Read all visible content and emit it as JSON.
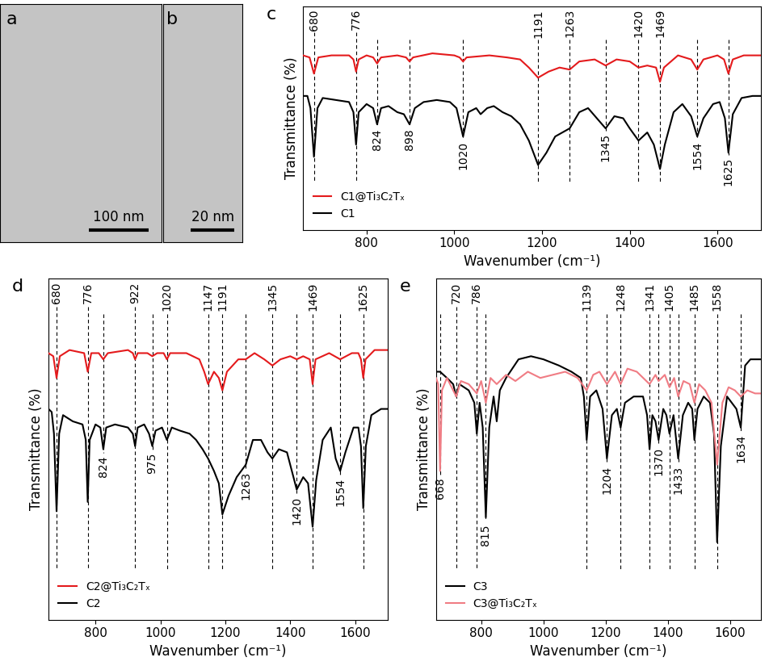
{
  "images": [
    {
      "panel": "a",
      "scale_bar": "100 nm"
    },
    {
      "panel": "b",
      "scale_bar": "20 nm"
    }
  ],
  "chart_data": [
    {
      "type": "line",
      "panel": "c",
      "x_label": "Wavenumber (cm⁻¹)",
      "y_label": "Transmittance (%)",
      "xlim": [
        655,
        1700
      ],
      "xticks": [
        800,
        1000,
        1200,
        1400,
        1600
      ],
      "ylim": [
        0,
        110
      ],
      "yticks": [],
      "tick_labels": "x",
      "legend": "lower left",
      "peaks_top": [
        680,
        776,
        1191,
        1263,
        1420,
        1469
      ],
      "peaks_bottom": [
        824,
        898,
        1020,
        1345,
        1554,
        1625
      ],
      "series": [
        {
          "name": "C1@Ti₃C₂Tₓ",
          "color": "#e41a1c",
          "x": [
            655,
            670,
            680,
            690,
            720,
            760,
            770,
            776,
            782,
            800,
            815,
            824,
            833,
            870,
            890,
            898,
            906,
            950,
            1000,
            1012,
            1020,
            1028,
            1080,
            1120,
            1150,
            1170,
            1191,
            1215,
            1240,
            1263,
            1285,
            1320,
            1345,
            1370,
            1400,
            1420,
            1440,
            1460,
            1469,
            1478,
            1510,
            1540,
            1554,
            1568,
            1600,
            1615,
            1625,
            1635,
            1660,
            1700
          ],
          "values": [
            86,
            85,
            77,
            85,
            86,
            86,
            84,
            78,
            84,
            86,
            85,
            82,
            85,
            86,
            85,
            83,
            85,
            87,
            86,
            85,
            83,
            85,
            86,
            85,
            84,
            80,
            75,
            78,
            80,
            79,
            83,
            84,
            81,
            84,
            83,
            80,
            81,
            80,
            73,
            80,
            86,
            84,
            79,
            84,
            86,
            84,
            77,
            84,
            86,
            86
          ]
        },
        {
          "name": "C1",
          "color": "#000000",
          "x": [
            655,
            665,
            672,
            680,
            688,
            700,
            730,
            760,
            770,
            776,
            782,
            800,
            815,
            824,
            833,
            850,
            870,
            885,
            898,
            910,
            930,
            960,
            990,
            1005,
            1020,
            1032,
            1050,
            1060,
            1075,
            1090,
            1110,
            1130,
            1150,
            1170,
            1191,
            1210,
            1230,
            1263,
            1285,
            1305,
            1325,
            1345,
            1365,
            1385,
            1400,
            1420,
            1440,
            1455,
            1469,
            1480,
            1500,
            1520,
            1540,
            1554,
            1568,
            1590,
            1605,
            1617,
            1625,
            1635,
            1655,
            1680,
            1700
          ],
          "values": [
            66,
            66,
            60,
            36,
            60,
            65,
            64,
            63,
            58,
            42,
            58,
            62,
            60,
            52,
            60,
            61,
            58,
            57,
            52,
            60,
            63,
            64,
            63,
            60,
            46,
            58,
            60,
            57,
            60,
            61,
            58,
            56,
            52,
            44,
            32,
            38,
            46,
            50,
            58,
            60,
            55,
            50,
            56,
            55,
            50,
            44,
            48,
            42,
            30,
            42,
            58,
            62,
            56,
            46,
            55,
            62,
            63,
            55,
            38,
            57,
            65,
            66,
            66
          ]
        }
      ]
    },
    {
      "type": "line",
      "panel": "d",
      "x_label": "Wavenumber (cm⁻¹)",
      "y_label": "Transmittance (%)",
      "xlim": [
        655,
        1700
      ],
      "xticks": [
        800,
        1000,
        1200,
        1400,
        1600
      ],
      "ylim": [
        0,
        110
      ],
      "yticks": [],
      "tick_labels": "x",
      "legend": "lower left",
      "peaks_top": [
        680,
        776,
        922,
        1020,
        1147,
        1191,
        1345,
        1469,
        1625
      ],
      "peaks_bottom": [
        824,
        975,
        1263,
        1420,
        1554
      ],
      "series": [
        {
          "name": "C2@Ti₃C₂Tₓ",
          "color": "#e41a1c",
          "x": [
            655,
            670,
            680,
            690,
            720,
            765,
            776,
            787,
            810,
            824,
            838,
            900,
            915,
            922,
            930,
            960,
            975,
            990,
            1010,
            1020,
            1030,
            1080,
            1120,
            1135,
            1147,
            1165,
            1180,
            1191,
            1205,
            1240,
            1263,
            1290,
            1320,
            1345,
            1370,
            1400,
            1420,
            1440,
            1460,
            1469,
            1478,
            1520,
            1554,
            1590,
            1610,
            1618,
            1625,
            1632,
            1660,
            1700
          ],
          "values": [
            86,
            85,
            78,
            85,
            87,
            86,
            80,
            86,
            86,
            84,
            86,
            87,
            86,
            84,
            86,
            86,
            85,
            86,
            86,
            84,
            86,
            86,
            84,
            80,
            76,
            80,
            78,
            74,
            80,
            84,
            84,
            86,
            84,
            82,
            84,
            85,
            84,
            85,
            84,
            76,
            84,
            86,
            84,
            86,
            86,
            84,
            78,
            84,
            87,
            87
          ]
        },
        {
          "name": "C2",
          "color": "#000000",
          "x": [
            655,
            665,
            672,
            680,
            688,
            700,
            730,
            760,
            770,
            776,
            782,
            800,
            815,
            824,
            833,
            860,
            900,
            915,
            922,
            930,
            950,
            965,
            975,
            985,
            1005,
            1020,
            1035,
            1060,
            1090,
            1110,
            1130,
            1147,
            1165,
            1180,
            1191,
            1210,
            1235,
            1263,
            1285,
            1310,
            1330,
            1345,
            1365,
            1390,
            1405,
            1420,
            1440,
            1455,
            1469,
            1480,
            1500,
            1525,
            1540,
            1554,
            1570,
            1595,
            1610,
            1618,
            1625,
            1633,
            1650,
            1680,
            1700
          ],
          "values": [
            68,
            67,
            60,
            35,
            60,
            66,
            64,
            63,
            58,
            38,
            58,
            63,
            62,
            55,
            62,
            63,
            62,
            60,
            56,
            62,
            63,
            60,
            56,
            61,
            62,
            58,
            62,
            61,
            60,
            58,
            55,
            52,
            48,
            44,
            34,
            40,
            46,
            50,
            58,
            58,
            54,
            52,
            55,
            54,
            48,
            42,
            46,
            44,
            30,
            45,
            58,
            62,
            52,
            48,
            54,
            62,
            62,
            56,
            36,
            56,
            66,
            68,
            68
          ]
        }
      ]
    },
    {
      "type": "line",
      "panel": "e",
      "x_label": "Wavenumber (cm⁻¹)",
      "y_label": "Transmittance (%)",
      "xlim": [
        655,
        1700
      ],
      "xticks": [
        800,
        1000,
        1200,
        1400,
        1600
      ],
      "ylim": [
        0,
        110
      ],
      "yticks": [],
      "tick_labels": "x",
      "legend": "lower left",
      "peaks_top": [
        720,
        786,
        1139,
        1248,
        1341,
        1405,
        1485,
        1558
      ],
      "peaks_bottom": [
        668,
        815,
        1204,
        1370,
        1433,
        1634
      ],
      "series": [
        {
          "name": "C3",
          "color": "#000000",
          "x": [
            655,
            668,
            690,
            710,
            720,
            730,
            760,
            778,
            786,
            795,
            805,
            815,
            826,
            840,
            850,
            860,
            880,
            920,
            960,
            1000,
            1050,
            1090,
            1120,
            1130,
            1139,
            1150,
            1170,
            1190,
            1204,
            1220,
            1236,
            1248,
            1262,
            1290,
            1320,
            1333,
            1341,
            1350,
            1360,
            1370,
            1385,
            1395,
            1405,
            1418,
            1433,
            1448,
            1465,
            1478,
            1485,
            1495,
            1515,
            1535,
            1548,
            1558,
            1570,
            1590,
            1605,
            1620,
            1634,
            1648,
            1665,
            1685,
            1700
          ],
          "values": [
            80,
            80,
            78,
            76,
            72,
            76,
            74,
            70,
            60,
            70,
            62,
            33,
            62,
            72,
            64,
            74,
            78,
            84,
            85,
            84,
            82,
            80,
            78,
            72,
            58,
            72,
            74,
            68,
            52,
            66,
            68,
            62,
            70,
            72,
            72,
            66,
            55,
            66,
            64,
            58,
            68,
            66,
            60,
            66,
            52,
            66,
            70,
            68,
            58,
            68,
            72,
            70,
            60,
            25,
            56,
            72,
            70,
            68,
            62,
            82,
            84,
            84,
            84
          ]
        },
        {
          "name": "C3@Ti₃C₂Tₓ",
          "color": "#f07c84",
          "x": [
            655,
            662,
            668,
            674,
            690,
            705,
            720,
            735,
            760,
            786,
            800,
            815,
            830,
            850,
            880,
            910,
            950,
            990,
            1030,
            1070,
            1110,
            1139,
            1160,
            1180,
            1204,
            1230,
            1248,
            1270,
            1300,
            1341,
            1360,
            1370,
            1390,
            1405,
            1420,
            1433,
            1450,
            1470,
            1485,
            1500,
            1520,
            1540,
            1558,
            1575,
            1595,
            1615,
            1634,
            1655,
            1680,
            1700
          ],
          "values": [
            78,
            76,
            48,
            74,
            78,
            75,
            72,
            77,
            76,
            73,
            77,
            70,
            78,
            76,
            79,
            77,
            80,
            78,
            79,
            80,
            78,
            74,
            79,
            80,
            76,
            80,
            76,
            81,
            80,
            76,
            79,
            77,
            79,
            75,
            78,
            72,
            77,
            76,
            70,
            76,
            74,
            70,
            50,
            70,
            75,
            74,
            72,
            74,
            73,
            73
          ]
        }
      ]
    }
  ]
}
